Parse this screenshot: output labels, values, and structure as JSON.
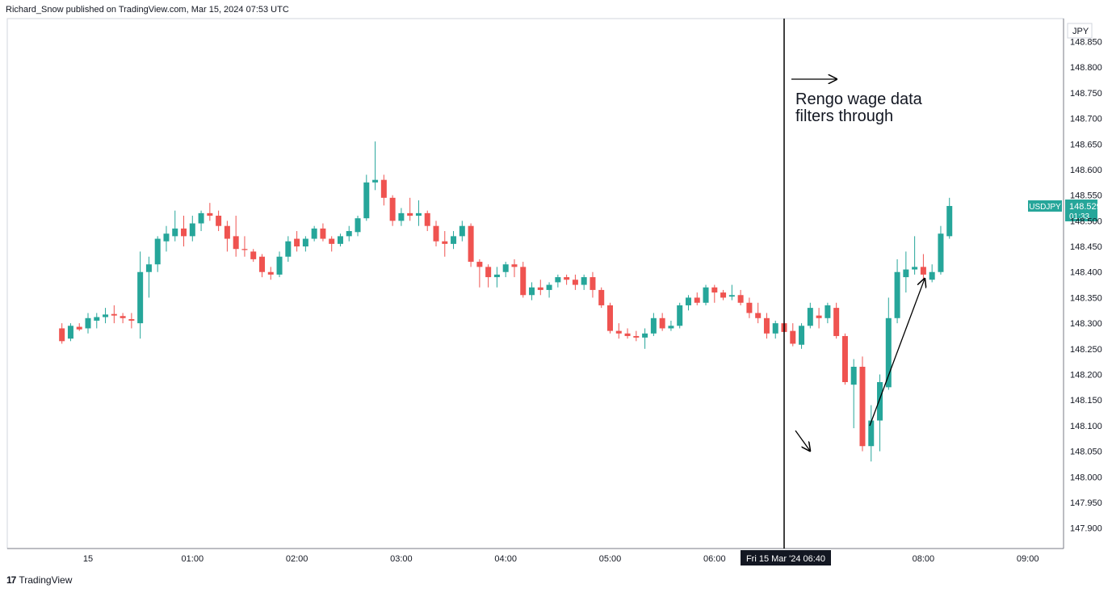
{
  "header": {
    "published_by": "Richard_Snow published on TradingView.com, Mar 15, 2024 07:53 UTC"
  },
  "footer": {
    "logo_mark": "17",
    "logo_text": "TradingView"
  },
  "colors": {
    "up": "#26a69a",
    "down": "#ef5350",
    "axis": "#131722",
    "grid_border": "#d1d4dc",
    "crosshair_label_bg": "#131722"
  },
  "chart_data": {
    "type": "candlestick",
    "symbol": "USDJPY",
    "currency": "JPY",
    "interval_minutes": 5,
    "last_price": "148.529",
    "countdown": "01:33",
    "ylim": [
      147.86,
      148.895
    ],
    "y_ticks": [
      "148.850",
      "148.800",
      "148.750",
      "148.700",
      "148.650",
      "148.600",
      "148.550",
      "148.500",
      "148.450",
      "148.400",
      "148.350",
      "148.300",
      "148.250",
      "148.200",
      "148.150",
      "148.100",
      "148.050",
      "148.000",
      "147.950",
      "147.900"
    ],
    "x_ticks": [
      {
        "label": "15",
        "time": "00:00"
      },
      {
        "label": "01:00",
        "time": "01:00"
      },
      {
        "label": "02:00",
        "time": "02:00"
      },
      {
        "label": "03:00",
        "time": "03:00"
      },
      {
        "label": "04:00",
        "time": "04:00"
      },
      {
        "label": "05:00",
        "time": "05:00"
      },
      {
        "label": "06:00",
        "time": "06:00"
      },
      {
        "label": "08:00",
        "time": "08:00"
      },
      {
        "label": "09:00",
        "time": "09:00"
      }
    ],
    "vertical_line": {
      "time": "06:40",
      "label": "Fri 15 Mar '24   06:40"
    },
    "annotation_text": [
      "Rengo wage data",
      "filters through"
    ],
    "candles": [
      {
        "t": "23:45",
        "o": 148.29,
        "h": 148.3,
        "l": 148.26,
        "c": 148.265
      },
      {
        "t": "23:50",
        "o": 148.27,
        "h": 148.3,
        "l": 148.265,
        "c": 148.295
      },
      {
        "t": "23:55",
        "o": 148.293,
        "h": 148.3,
        "l": 148.285,
        "c": 148.288
      },
      {
        "t": "00:00",
        "o": 148.29,
        "h": 148.32,
        "l": 148.28,
        "c": 148.31
      },
      {
        "t": "00:05",
        "o": 148.305,
        "h": 148.32,
        "l": 148.29,
        "c": 148.312
      },
      {
        "t": "00:10",
        "o": 148.312,
        "h": 148.33,
        "l": 148.3,
        "c": 148.317
      },
      {
        "t": "00:15",
        "o": 148.318,
        "h": 148.335,
        "l": 148.3,
        "c": 148.315
      },
      {
        "t": "00:20",
        "o": 148.314,
        "h": 148.32,
        "l": 148.3,
        "c": 148.31
      },
      {
        "t": "00:25",
        "o": 148.308,
        "h": 148.32,
        "l": 148.29,
        "c": 148.305
      },
      {
        "t": "00:30",
        "o": 148.3,
        "h": 148.44,
        "l": 148.27,
        "c": 148.4
      },
      {
        "t": "00:35",
        "o": 148.4,
        "h": 148.43,
        "l": 148.35,
        "c": 148.415
      },
      {
        "t": "00:40",
        "o": 148.415,
        "h": 148.47,
        "l": 148.4,
        "c": 148.465
      },
      {
        "t": "00:45",
        "o": 148.46,
        "h": 148.49,
        "l": 148.44,
        "c": 148.475
      },
      {
        "t": "00:50",
        "o": 148.47,
        "h": 148.52,
        "l": 148.46,
        "c": 148.485
      },
      {
        "t": "00:55",
        "o": 148.485,
        "h": 148.51,
        "l": 148.45,
        "c": 148.47
      },
      {
        "t": "01:00",
        "o": 148.47,
        "h": 148.51,
        "l": 148.46,
        "c": 148.495
      },
      {
        "t": "01:05",
        "o": 148.495,
        "h": 148.52,
        "l": 148.48,
        "c": 148.515
      },
      {
        "t": "01:10",
        "o": 148.515,
        "h": 148.535,
        "l": 148.5,
        "c": 148.51
      },
      {
        "t": "01:15",
        "o": 148.51,
        "h": 148.52,
        "l": 148.48,
        "c": 148.49
      },
      {
        "t": "01:20",
        "o": 148.49,
        "h": 148.5,
        "l": 148.44,
        "c": 148.465
      },
      {
        "t": "01:25",
        "o": 148.47,
        "h": 148.51,
        "l": 148.43,
        "c": 148.445
      },
      {
        "t": "01:30",
        "o": 148.445,
        "h": 148.47,
        "l": 148.43,
        "c": 148.443
      },
      {
        "t": "01:35",
        "o": 148.44,
        "h": 148.445,
        "l": 148.42,
        "c": 148.425
      },
      {
        "t": "01:40",
        "o": 148.43,
        "h": 148.435,
        "l": 148.39,
        "c": 148.4
      },
      {
        "t": "01:45",
        "o": 148.4,
        "h": 148.41,
        "l": 148.385,
        "c": 148.395
      },
      {
        "t": "01:50",
        "o": 148.395,
        "h": 148.44,
        "l": 148.39,
        "c": 148.43
      },
      {
        "t": "01:55",
        "o": 148.43,
        "h": 148.47,
        "l": 148.42,
        "c": 148.46
      },
      {
        "t": "02:00",
        "o": 148.465,
        "h": 148.48,
        "l": 148.44,
        "c": 148.45
      },
      {
        "t": "02:05",
        "o": 148.45,
        "h": 148.47,
        "l": 148.44,
        "c": 148.465
      },
      {
        "t": "02:10",
        "o": 148.465,
        "h": 148.49,
        "l": 148.46,
        "c": 148.485
      },
      {
        "t": "02:15",
        "o": 148.485,
        "h": 148.495,
        "l": 148.46,
        "c": 148.465
      },
      {
        "t": "02:20",
        "o": 148.465,
        "h": 148.47,
        "l": 148.44,
        "c": 148.455
      },
      {
        "t": "02:25",
        "o": 148.455,
        "h": 148.475,
        "l": 148.45,
        "c": 148.47
      },
      {
        "t": "02:30",
        "o": 148.47,
        "h": 148.49,
        "l": 148.46,
        "c": 148.48
      },
      {
        "t": "02:35",
        "o": 148.478,
        "h": 148.51,
        "l": 148.47,
        "c": 148.505
      },
      {
        "t": "02:40",
        "o": 148.505,
        "h": 148.59,
        "l": 148.5,
        "c": 148.575
      },
      {
        "t": "02:45",
        "o": 148.575,
        "h": 148.655,
        "l": 148.56,
        "c": 148.58
      },
      {
        "t": "02:50",
        "o": 148.58,
        "h": 148.59,
        "l": 148.53,
        "c": 148.545
      },
      {
        "t": "02:55",
        "o": 148.545,
        "h": 148.55,
        "l": 148.49,
        "c": 148.5
      },
      {
        "t": "03:00",
        "o": 148.5,
        "h": 148.525,
        "l": 148.49,
        "c": 148.515
      },
      {
        "t": "03:05",
        "o": 148.515,
        "h": 148.545,
        "l": 148.5,
        "c": 148.51
      },
      {
        "t": "03:10",
        "o": 148.51,
        "h": 148.54,
        "l": 148.49,
        "c": 148.515
      },
      {
        "t": "03:15",
        "o": 148.515,
        "h": 148.52,
        "l": 148.48,
        "c": 148.49
      },
      {
        "t": "03:20",
        "o": 148.49,
        "h": 148.5,
        "l": 148.45,
        "c": 148.46
      },
      {
        "t": "03:25",
        "o": 148.46,
        "h": 148.48,
        "l": 148.43,
        "c": 148.455
      },
      {
        "t": "03:30",
        "o": 148.455,
        "h": 148.48,
        "l": 148.445,
        "c": 148.47
      },
      {
        "t": "03:35",
        "o": 148.47,
        "h": 148.5,
        "l": 148.46,
        "c": 148.49
      },
      {
        "t": "03:40",
        "o": 148.49,
        "h": 148.495,
        "l": 148.41,
        "c": 148.42
      },
      {
        "t": "03:45",
        "o": 148.42,
        "h": 148.425,
        "l": 148.37,
        "c": 148.41
      },
      {
        "t": "03:50",
        "o": 148.41,
        "h": 148.415,
        "l": 148.37,
        "c": 148.39
      },
      {
        "t": "03:55",
        "o": 148.39,
        "h": 148.41,
        "l": 148.37,
        "c": 148.395
      },
      {
        "t": "04:00",
        "o": 148.4,
        "h": 148.42,
        "l": 148.39,
        "c": 148.415
      },
      {
        "t": "04:05",
        "o": 148.415,
        "h": 148.425,
        "l": 148.39,
        "c": 148.41
      },
      {
        "t": "04:10",
        "o": 148.41,
        "h": 148.42,
        "l": 148.35,
        "c": 148.355
      },
      {
        "t": "04:15",
        "o": 148.355,
        "h": 148.38,
        "l": 148.345,
        "c": 148.37
      },
      {
        "t": "04:20",
        "o": 148.37,
        "h": 148.385,
        "l": 148.355,
        "c": 148.365
      },
      {
        "t": "04:25",
        "o": 148.365,
        "h": 148.38,
        "l": 148.35,
        "c": 148.375
      },
      {
        "t": "04:30",
        "o": 148.38,
        "h": 148.395,
        "l": 148.37,
        "c": 148.39
      },
      {
        "t": "04:35",
        "o": 148.39,
        "h": 148.395,
        "l": 148.375,
        "c": 148.385
      },
      {
        "t": "04:40",
        "o": 148.385,
        "h": 148.395,
        "l": 148.365,
        "c": 148.375
      },
      {
        "t": "04:45",
        "o": 148.375,
        "h": 148.395,
        "l": 148.365,
        "c": 148.39
      },
      {
        "t": "04:50",
        "o": 148.39,
        "h": 148.4,
        "l": 148.35,
        "c": 148.365
      },
      {
        "t": "04:55",
        "o": 148.365,
        "h": 148.37,
        "l": 148.33,
        "c": 148.335
      },
      {
        "t": "05:00",
        "o": 148.335,
        "h": 148.34,
        "l": 148.28,
        "c": 148.285
      },
      {
        "t": "05:05",
        "o": 148.285,
        "h": 148.3,
        "l": 148.27,
        "c": 148.28
      },
      {
        "t": "05:10",
        "o": 148.28,
        "h": 148.29,
        "l": 148.27,
        "c": 148.275
      },
      {
        "t": "05:15",
        "o": 148.275,
        "h": 148.285,
        "l": 148.265,
        "c": 148.272
      },
      {
        "t": "05:20",
        "o": 148.272,
        "h": 148.29,
        "l": 148.25,
        "c": 148.28
      },
      {
        "t": "05:25",
        "o": 148.28,
        "h": 148.32,
        "l": 148.275,
        "c": 148.31
      },
      {
        "t": "05:30",
        "o": 148.31,
        "h": 148.32,
        "l": 148.285,
        "c": 148.29
      },
      {
        "t": "05:35",
        "o": 148.29,
        "h": 148.305,
        "l": 148.285,
        "c": 148.295
      },
      {
        "t": "05:40",
        "o": 148.295,
        "h": 148.34,
        "l": 148.29,
        "c": 148.335
      },
      {
        "t": "05:45",
        "o": 148.335,
        "h": 148.355,
        "l": 148.325,
        "c": 148.35
      },
      {
        "t": "05:50",
        "o": 148.35,
        "h": 148.36,
        "l": 148.335,
        "c": 148.34
      },
      {
        "t": "05:55",
        "o": 148.34,
        "h": 148.375,
        "l": 148.335,
        "c": 148.37
      },
      {
        "t": "06:00",
        "o": 148.37,
        "h": 148.375,
        "l": 148.34,
        "c": 148.36
      },
      {
        "t": "06:05",
        "o": 148.36,
        "h": 148.365,
        "l": 148.345,
        "c": 148.35
      },
      {
        "t": "06:10",
        "o": 148.352,
        "h": 148.375,
        "l": 148.345,
        "c": 148.355
      },
      {
        "t": "06:15",
        "o": 148.355,
        "h": 148.365,
        "l": 148.335,
        "c": 148.34
      },
      {
        "t": "06:20",
        "o": 148.34,
        "h": 148.35,
        "l": 148.31,
        "c": 148.32
      },
      {
        "t": "06:25",
        "o": 148.32,
        "h": 148.34,
        "l": 148.3,
        "c": 148.31
      },
      {
        "t": "06:30",
        "o": 148.31,
        "h": 148.32,
        "l": 148.27,
        "c": 148.28
      },
      {
        "t": "06:35",
        "o": 148.28,
        "h": 148.305,
        "l": 148.27,
        "c": 148.3
      },
      {
        "t": "06:40",
        "o": 148.3,
        "h": 148.31,
        "l": 148.27,
        "c": 148.283
      },
      {
        "t": "06:45",
        "o": 148.285,
        "h": 148.3,
        "l": 148.255,
        "c": 148.26
      },
      {
        "t": "06:50",
        "o": 148.258,
        "h": 148.3,
        "l": 148.25,
        "c": 148.295
      },
      {
        "t": "06:55",
        "o": 148.295,
        "h": 148.34,
        "l": 148.29,
        "c": 148.33
      },
      {
        "t": "07:00",
        "o": 148.315,
        "h": 148.33,
        "l": 148.29,
        "c": 148.31
      },
      {
        "t": "07:05",
        "o": 148.31,
        "h": 148.34,
        "l": 148.3,
        "c": 148.335
      },
      {
        "t": "07:10",
        "o": 148.33,
        "h": 148.34,
        "l": 148.27,
        "c": 148.275
      },
      {
        "t": "07:15",
        "o": 148.275,
        "h": 148.28,
        "l": 148.18,
        "c": 148.185
      },
      {
        "t": "07:20",
        "o": 148.18,
        "h": 148.23,
        "l": 148.095,
        "c": 148.215
      },
      {
        "t": "07:25",
        "o": 148.215,
        "h": 148.235,
        "l": 148.05,
        "c": 148.06
      },
      {
        "t": "07:30",
        "o": 148.06,
        "h": 148.14,
        "l": 148.03,
        "c": 148.11
      },
      {
        "t": "07:35",
        "o": 148.11,
        "h": 148.2,
        "l": 148.05,
        "c": 148.185
      },
      {
        "t": "07:40",
        "o": 148.175,
        "h": 148.35,
        "l": 148.17,
        "c": 148.31
      },
      {
        "t": "07:45",
        "o": 148.31,
        "h": 148.425,
        "l": 148.3,
        "c": 148.4
      },
      {
        "t": "07:50",
        "o": 148.39,
        "h": 148.44,
        "l": 148.36,
        "c": 148.405
      },
      {
        "t": "07:55",
        "o": 148.405,
        "h": 148.47,
        "l": 148.395,
        "c": 148.41
      },
      {
        "t": "08:00",
        "o": 148.41,
        "h": 148.435,
        "l": 148.385,
        "c": 148.395
      },
      {
        "t": "08:05",
        "o": 148.385,
        "h": 148.415,
        "l": 148.38,
        "c": 148.4
      },
      {
        "t": "08:10",
        "o": 148.4,
        "h": 148.49,
        "l": 148.395,
        "c": 148.475
      },
      {
        "t": "08:15",
        "o": 148.47,
        "h": 148.545,
        "l": 148.465,
        "c": 148.529
      }
    ]
  }
}
